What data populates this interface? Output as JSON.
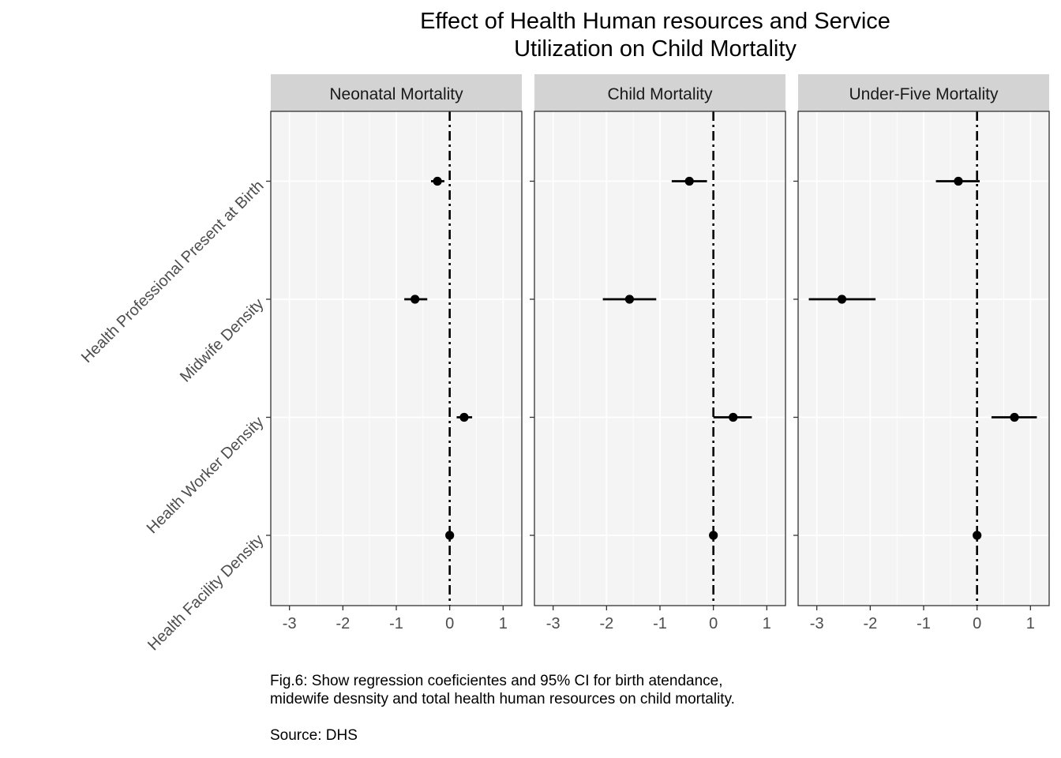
{
  "chart_data": {
    "type": "scatter",
    "title_lines": [
      "Effect of Health Human resources and Service",
      "Utilization on Child Mortality"
    ],
    "caption_lines": [
      "Fig.6: Show regression coeficientes and 95% CI for birth atendance,",
      "midewife desnsity and total health human resources on child mortality.",
      "",
      "Source: DHS"
    ],
    "xlim": [
      -3.35,
      1.35
    ],
    "x_ticks": [
      -3,
      -2,
      -1,
      0,
      1
    ],
    "x_tick_labels": [
      "-3",
      "-2",
      "-1",
      "0",
      "1"
    ],
    "categories": [
      "Health Professional Present at Birth",
      "Midwife Density",
      "Health Worker Density",
      "Health Facility Density"
    ],
    "reference_line_x": 0,
    "reference_line_style": "dash-dot",
    "grid": true,
    "colors": {
      "panel_bg": "#f4f4f4",
      "strip_bg": "#d3d3d3",
      "grid": "#ffffff",
      "points": "#000000"
    },
    "panels": [
      {
        "name": "Neonatal Mortality",
        "estimates": [
          -0.23,
          -0.65,
          0.27,
          0.0
        ],
        "ci_low": [
          -0.35,
          -0.85,
          0.13,
          0.0
        ],
        "ci_high": [
          -0.1,
          -0.42,
          0.42,
          0.0
        ]
      },
      {
        "name": "Child Mortality",
        "estimates": [
          -0.45,
          -1.57,
          0.37,
          0.0
        ],
        "ci_low": [
          -0.78,
          -2.07,
          0.0,
          0.0
        ],
        "ci_high": [
          -0.12,
          -1.07,
          0.72,
          0.0
        ]
      },
      {
        "name": "Under-Five Mortality",
        "estimates": [
          -0.35,
          -2.53,
          0.7,
          0.0
        ],
        "ci_low": [
          -0.77,
          -3.15,
          0.27,
          0.0
        ],
        "ci_high": [
          0.05,
          -1.9,
          1.12,
          0.0
        ]
      }
    ]
  }
}
